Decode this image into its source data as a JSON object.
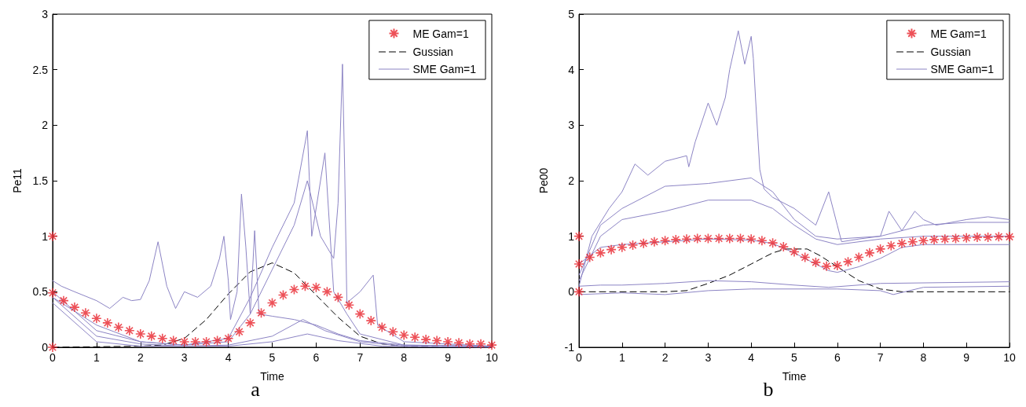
{
  "chart_data": [
    {
      "type": "line",
      "xlabel": "Time",
      "ylabel": "Pe11",
      "annotations": [
        "a"
      ],
      "xlim": [
        0,
        10
      ],
      "xticks": [
        0,
        1,
        2,
        3,
        4,
        5,
        6,
        7,
        8,
        9,
        10
      ],
      "ylim": [
        0,
        3
      ],
      "yticks": [
        0,
        0.5,
        1,
        1.5,
        2,
        2.5,
        3
      ],
      "grid": false,
      "legend": "top right",
      "series": [
        {
          "name": "ME Gam=1",
          "type": "scatter",
          "marker": "cross",
          "color": "#e8262e",
          "x": [
            0,
            0,
            0,
            0.25,
            0.5,
            0.75,
            1,
            1.25,
            1.5,
            1.75,
            2,
            2.25,
            2.5,
            2.75,
            3,
            3.25,
            3.5,
            3.75,
            4,
            4.25,
            4.5,
            4.75,
            5,
            5.25,
            5.5,
            5.75,
            6,
            6.25,
            6.5,
            6.75,
            7,
            7.25,
            7.5,
            7.75,
            8,
            8.25,
            8.5,
            8.75,
            9,
            9.25,
            9.5,
            9.75,
            10
          ],
          "values": [
            1,
            0.49,
            0,
            0.42,
            0.36,
            0.31,
            0.26,
            0.22,
            0.18,
            0.15,
            0.12,
            0.1,
            0.08,
            0.06,
            0.05,
            0.05,
            0.05,
            0.06,
            0.08,
            0.14,
            0.22,
            0.31,
            0.4,
            0.47,
            0.52,
            0.55,
            0.54,
            0.5,
            0.45,
            0.38,
            0.3,
            0.24,
            0.18,
            0.14,
            0.11,
            0.09,
            0.07,
            0.06,
            0.05,
            0.04,
            0.03,
            0.03,
            0.02
          ]
        },
        {
          "name": "Gussian",
          "type": "line",
          "marker": "none",
          "line_style": "dashed",
          "color": "#000000",
          "x": [
            0,
            2,
            2.5,
            3,
            3.5,
            4,
            4.5,
            5,
            5.5,
            6,
            6.5,
            7,
            7.5,
            8,
            10
          ],
          "values": [
            0,
            0.01,
            0.02,
            0.08,
            0.25,
            0.48,
            0.68,
            0.76,
            0.67,
            0.47,
            0.27,
            0.1,
            0.03,
            0.01,
            0
          ]
        },
        {
          "name": "SME Gam=1",
          "type": "line",
          "marker": "none",
          "line_style": "solid",
          "color": "#8c84c4",
          "x": [
            0,
            0.2,
            0.5,
            1,
            1.3,
            1.6,
            1.8,
            2,
            2.2,
            2.4,
            2.6,
            2.8,
            3,
            3.3,
            3.6,
            3.8,
            3.9,
            4,
            4.05,
            4.2,
            4.3,
            4.4,
            4.5,
            4.6,
            4.7,
            5,
            5.5,
            6,
            6.5,
            7,
            8,
            10
          ],
          "values": [
            0.6,
            0.55,
            0.5,
            0.42,
            0.35,
            0.45,
            0.42,
            0.43,
            0.6,
            0.95,
            0.55,
            0.35,
            0.5,
            0.45,
            0.55,
            0.8,
            1,
            0.6,
            0.25,
            0.5,
            1.38,
            0.9,
            0.3,
            1.05,
            0.3,
            0.28,
            0.25,
            0.2,
            0.12,
            0.06,
            0.02,
            0.01
          ]
        },
        {
          "type": "line",
          "marker": "none",
          "line_style": "solid",
          "color": "#8c84c4",
          "x": [
            0,
            1,
            2,
            3,
            4,
            4.5,
            5,
            5.5,
            5.8,
            6.1,
            6.4,
            6.5,
            6.6,
            6.65,
            6.7,
            7,
            7.3,
            7.4,
            8,
            10
          ],
          "values": [
            0.45,
            0.2,
            0.05,
            0.02,
            0.05,
            0.3,
            0.7,
            1.1,
            1.5,
            1,
            0.8,
            1.3,
            2.55,
            1.6,
            0.4,
            0.5,
            0.65,
            0.2,
            0.05,
            0.01
          ]
        },
        {
          "type": "line",
          "marker": "none",
          "line_style": "solid",
          "color": "#8c84c4",
          "x": [
            0,
            1,
            2,
            3,
            4,
            4.5,
            5,
            5.5,
            5.8,
            5.9,
            6.2,
            6.4,
            6.7,
            7,
            8,
            10
          ],
          "values": [
            0.5,
            0.15,
            0.05,
            0.02,
            0.08,
            0.45,
            0.9,
            1.3,
            1.95,
            1,
            1.75,
            0.5,
            0.3,
            0.12,
            0.02,
            0.01
          ]
        },
        {
          "type": "line",
          "marker": "none",
          "line_style": "solid",
          "color": "#8c84c4",
          "x": [
            0,
            1,
            2,
            3,
            4,
            5,
            5.7,
            6.2,
            7,
            8,
            10
          ],
          "values": [
            0.45,
            0.1,
            0.03,
            0.01,
            0.02,
            0.1,
            0.25,
            0.15,
            0.05,
            0.01,
            0
          ]
        },
        {
          "type": "line",
          "marker": "none",
          "line_style": "solid",
          "color": "#8c84c4",
          "x": [
            0,
            1,
            2,
            4,
            5,
            5.8,
            6.5,
            7.5,
            10
          ],
          "values": [
            0.4,
            0.05,
            0.01,
            0.01,
            0.05,
            0.12,
            0.06,
            0.01,
            0
          ]
        }
      ]
    },
    {
      "type": "line",
      "xlabel": "Time",
      "ylabel": "Pe00",
      "annotations": [
        "b"
      ],
      "xlim": [
        0,
        10
      ],
      "xticks": [
        0,
        1,
        2,
        3,
        4,
        5,
        6,
        7,
        8,
        9,
        10
      ],
      "ylim": [
        -1,
        5
      ],
      "yticks": [
        -1,
        0,
        1,
        2,
        3,
        4,
        5
      ],
      "grid": false,
      "legend": "top right",
      "series": [
        {
          "name": "ME Gam=1",
          "type": "scatter",
          "marker": "cross",
          "color": "#e8262e",
          "x": [
            0,
            0,
            0,
            0.25,
            0.5,
            0.75,
            1,
            1.25,
            1.5,
            1.75,
            2,
            2.25,
            2.5,
            2.75,
            3,
            3.25,
            3.5,
            3.75,
            4,
            4.25,
            4.5,
            4.75,
            5,
            5.25,
            5.5,
            5.75,
            6,
            6.25,
            6.5,
            6.75,
            7,
            7.25,
            7.5,
            7.75,
            8,
            8.25,
            8.5,
            8.75,
            9,
            9.25,
            9.5,
            9.75,
            10
          ],
          "values": [
            1,
            0.5,
            0,
            0.62,
            0.7,
            0.76,
            0.8,
            0.84,
            0.87,
            0.9,
            0.92,
            0.94,
            0.95,
            0.96,
            0.96,
            0.96,
            0.96,
            0.96,
            0.95,
            0.92,
            0.88,
            0.81,
            0.72,
            0.62,
            0.53,
            0.46,
            0.47,
            0.54,
            0.62,
            0.7,
            0.77,
            0.83,
            0.87,
            0.9,
            0.92,
            0.94,
            0.95,
            0.96,
            0.97,
            0.98,
            0.98,
            0.99,
            0.99
          ]
        },
        {
          "name": "Gussian",
          "type": "line",
          "marker": "none",
          "line_style": "dashed",
          "color": "#000000",
          "x": [
            0,
            2,
            2.5,
            3,
            3.5,
            4,
            4.5,
            4.8,
            5.3,
            5.6,
            6,
            6.5,
            7,
            7.5,
            10
          ],
          "values": [
            0,
            0,
            0.02,
            0.15,
            0.3,
            0.5,
            0.7,
            0.77,
            0.77,
            0.65,
            0.45,
            0.2,
            0.05,
            0,
            0
          ]
        },
        {
          "name": "SME Gam=1",
          "type": "line",
          "marker": "none",
          "line_style": "solid",
          "color": "#8c84c4",
          "x": [
            0,
            0.3,
            0.7,
            1,
            1.3,
            1.6,
            2,
            2.5,
            2.55,
            2.7,
            3,
            3.2,
            3.4,
            3.5,
            3.7,
            3.85,
            4,
            4.05,
            4.1,
            4.2,
            4.3,
            4.5,
            5,
            5.5,
            5.8,
            6,
            6.1,
            6.5,
            7,
            7.2,
            7.5,
            7.8,
            8,
            8.3,
            9,
            9.5,
            10
          ],
          "values": [
            0.1,
            1,
            1.5,
            1.8,
            2.3,
            2.1,
            2.35,
            2.45,
            2.25,
            2.7,
            3.4,
            3,
            3.5,
            4,
            4.7,
            4.1,
            4.6,
            4.2,
            3.5,
            2.2,
            1.85,
            1.7,
            1.5,
            1.2,
            1.8,
            1.2,
            0.9,
            0.95,
            1,
            1.45,
            1.1,
            1.45,
            1.3,
            1.2,
            1.3,
            1.35,
            1.3
          ]
        },
        {
          "type": "line",
          "marker": "none",
          "line_style": "solid",
          "color": "#8c84c4",
          "x": [
            0,
            0.5,
            1,
            2,
            3,
            4,
            4.5,
            5,
            5.5,
            6,
            7,
            8,
            9,
            10
          ],
          "values": [
            0.3,
            1.2,
            1.5,
            1.9,
            1.95,
            2.05,
            1.8,
            1.3,
            1,
            0.95,
            1,
            1.2,
            1.25,
            1.25
          ]
        },
        {
          "type": "line",
          "marker": "none",
          "line_style": "solid",
          "color": "#8c84c4",
          "x": [
            0,
            0.5,
            1,
            2,
            3,
            4,
            4.5,
            5,
            5.5,
            6,
            7,
            8,
            10
          ],
          "values": [
            0.2,
            1,
            1.3,
            1.45,
            1.65,
            1.65,
            1.5,
            1.2,
            0.95,
            0.85,
            0.95,
            1,
            1
          ]
        },
        {
          "type": "line",
          "marker": "none",
          "line_style": "solid",
          "color": "#8c84c4",
          "x": [
            0,
            0.5,
            1,
            2,
            3,
            4,
            4.5,
            5,
            5.5,
            5.8,
            6,
            6.5,
            7,
            7.5,
            8,
            10
          ],
          "values": [
            0.5,
            0.8,
            0.85,
            0.9,
            0.95,
            0.93,
            0.87,
            0.7,
            0.5,
            0.38,
            0.35,
            0.45,
            0.6,
            0.8,
            0.85,
            0.85
          ]
        },
        {
          "type": "line",
          "marker": "none",
          "line_style": "solid",
          "color": "#8c84c4",
          "x": [
            0,
            0.5,
            1,
            2,
            3,
            4,
            5,
            5.8,
            7,
            10
          ],
          "values": [
            0.1,
            0.12,
            0.12,
            0.15,
            0.2,
            0.18,
            0.12,
            0.08,
            0.15,
            0.18
          ]
        },
        {
          "type": "line",
          "marker": "none",
          "line_style": "solid",
          "color": "#8c84c4",
          "x": [
            0,
            1,
            2,
            3,
            4,
            5,
            6,
            7,
            7.3,
            8,
            10
          ],
          "values": [
            -0.05,
            -0.02,
            -0.05,
            0.02,
            0.05,
            0.05,
            0.05,
            0.02,
            -0.05,
            0.08,
            0.1
          ]
        }
      ]
    }
  ]
}
